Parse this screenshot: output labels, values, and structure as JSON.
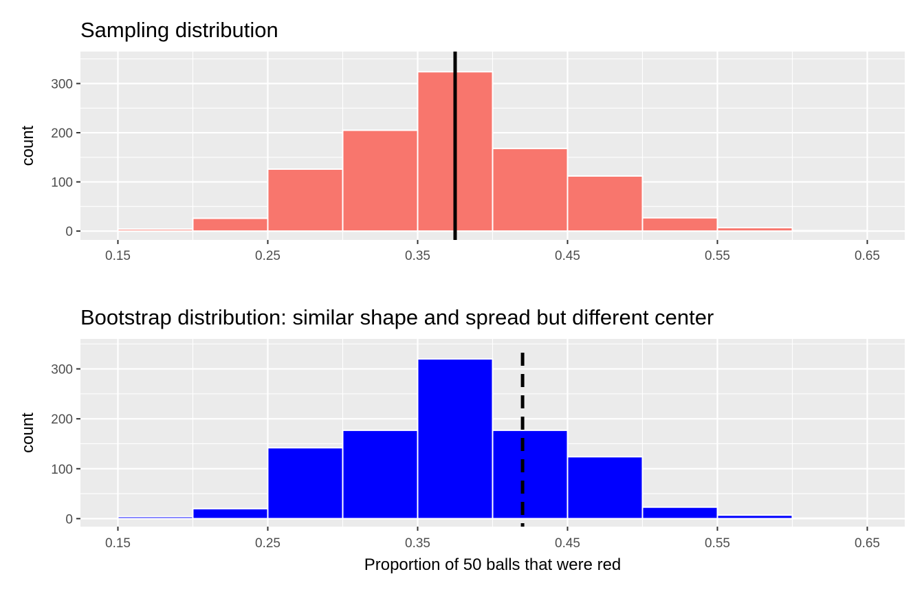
{
  "chart_data": [
    {
      "type": "bar",
      "title": "Sampling distribution",
      "xlabel": "",
      "ylabel": "count",
      "xlim": [
        0.125,
        0.675
      ],
      "ylim": [
        -18,
        365
      ],
      "x_ticks": [
        "0.15",
        "0.25",
        "0.35",
        "0.45",
        "0.55",
        "0.65"
      ],
      "y_ticks": [
        "0",
        "100",
        "200",
        "300"
      ],
      "bin_width": 0.05,
      "bins": [
        {
          "start": 0.15,
          "end": 0.2,
          "count": 4
        },
        {
          "start": 0.2,
          "end": 0.25,
          "count": 26
        },
        {
          "start": 0.25,
          "end": 0.3,
          "count": 126
        },
        {
          "start": 0.3,
          "end": 0.35,
          "count": 205
        },
        {
          "start": 0.35,
          "end": 0.4,
          "count": 324
        },
        {
          "start": 0.4,
          "end": 0.45,
          "count": 168
        },
        {
          "start": 0.45,
          "end": 0.5,
          "count": 112
        },
        {
          "start": 0.5,
          "end": 0.55,
          "count": 27
        },
        {
          "start": 0.55,
          "end": 0.6,
          "count": 7
        },
        {
          "start": 0.6,
          "end": 0.65,
          "count": 1
        }
      ],
      "fill_color": "#F8766D",
      "reference_line": {
        "x": 0.375,
        "style": "solid",
        "color": "#000000"
      },
      "grid": true
    },
    {
      "type": "bar",
      "title": "Bootstrap distribution: similar shape and spread but different center",
      "xlabel": "Proportion of 50 balls that were red",
      "ylabel": "count",
      "xlim": [
        0.125,
        0.675
      ],
      "ylim": [
        -16,
        360
      ],
      "x_ticks": [
        "0.15",
        "0.25",
        "0.35",
        "0.45",
        "0.55",
        "0.65"
      ],
      "y_ticks": [
        "0",
        "100",
        "200",
        "300"
      ],
      "bin_width": 0.05,
      "bins": [
        {
          "start": 0.15,
          "end": 0.2,
          "count": 4
        },
        {
          "start": 0.2,
          "end": 0.25,
          "count": 20
        },
        {
          "start": 0.25,
          "end": 0.3,
          "count": 142
        },
        {
          "start": 0.3,
          "end": 0.35,
          "count": 177
        },
        {
          "start": 0.35,
          "end": 0.4,
          "count": 320
        },
        {
          "start": 0.4,
          "end": 0.45,
          "count": 177
        },
        {
          "start": 0.45,
          "end": 0.5,
          "count": 124
        },
        {
          "start": 0.5,
          "end": 0.55,
          "count": 23
        },
        {
          "start": 0.55,
          "end": 0.6,
          "count": 7
        },
        {
          "start": 0.6,
          "end": 0.65,
          "count": 1
        }
      ],
      "fill_color": "#0000FF",
      "reference_line": {
        "x": 0.42,
        "style": "dashed",
        "color": "#000000"
      },
      "grid": true
    }
  ],
  "colors": {
    "panel_background": "#EBEBEB",
    "grid": "#FFFFFF",
    "bar_outline": "#FFFFFF"
  }
}
